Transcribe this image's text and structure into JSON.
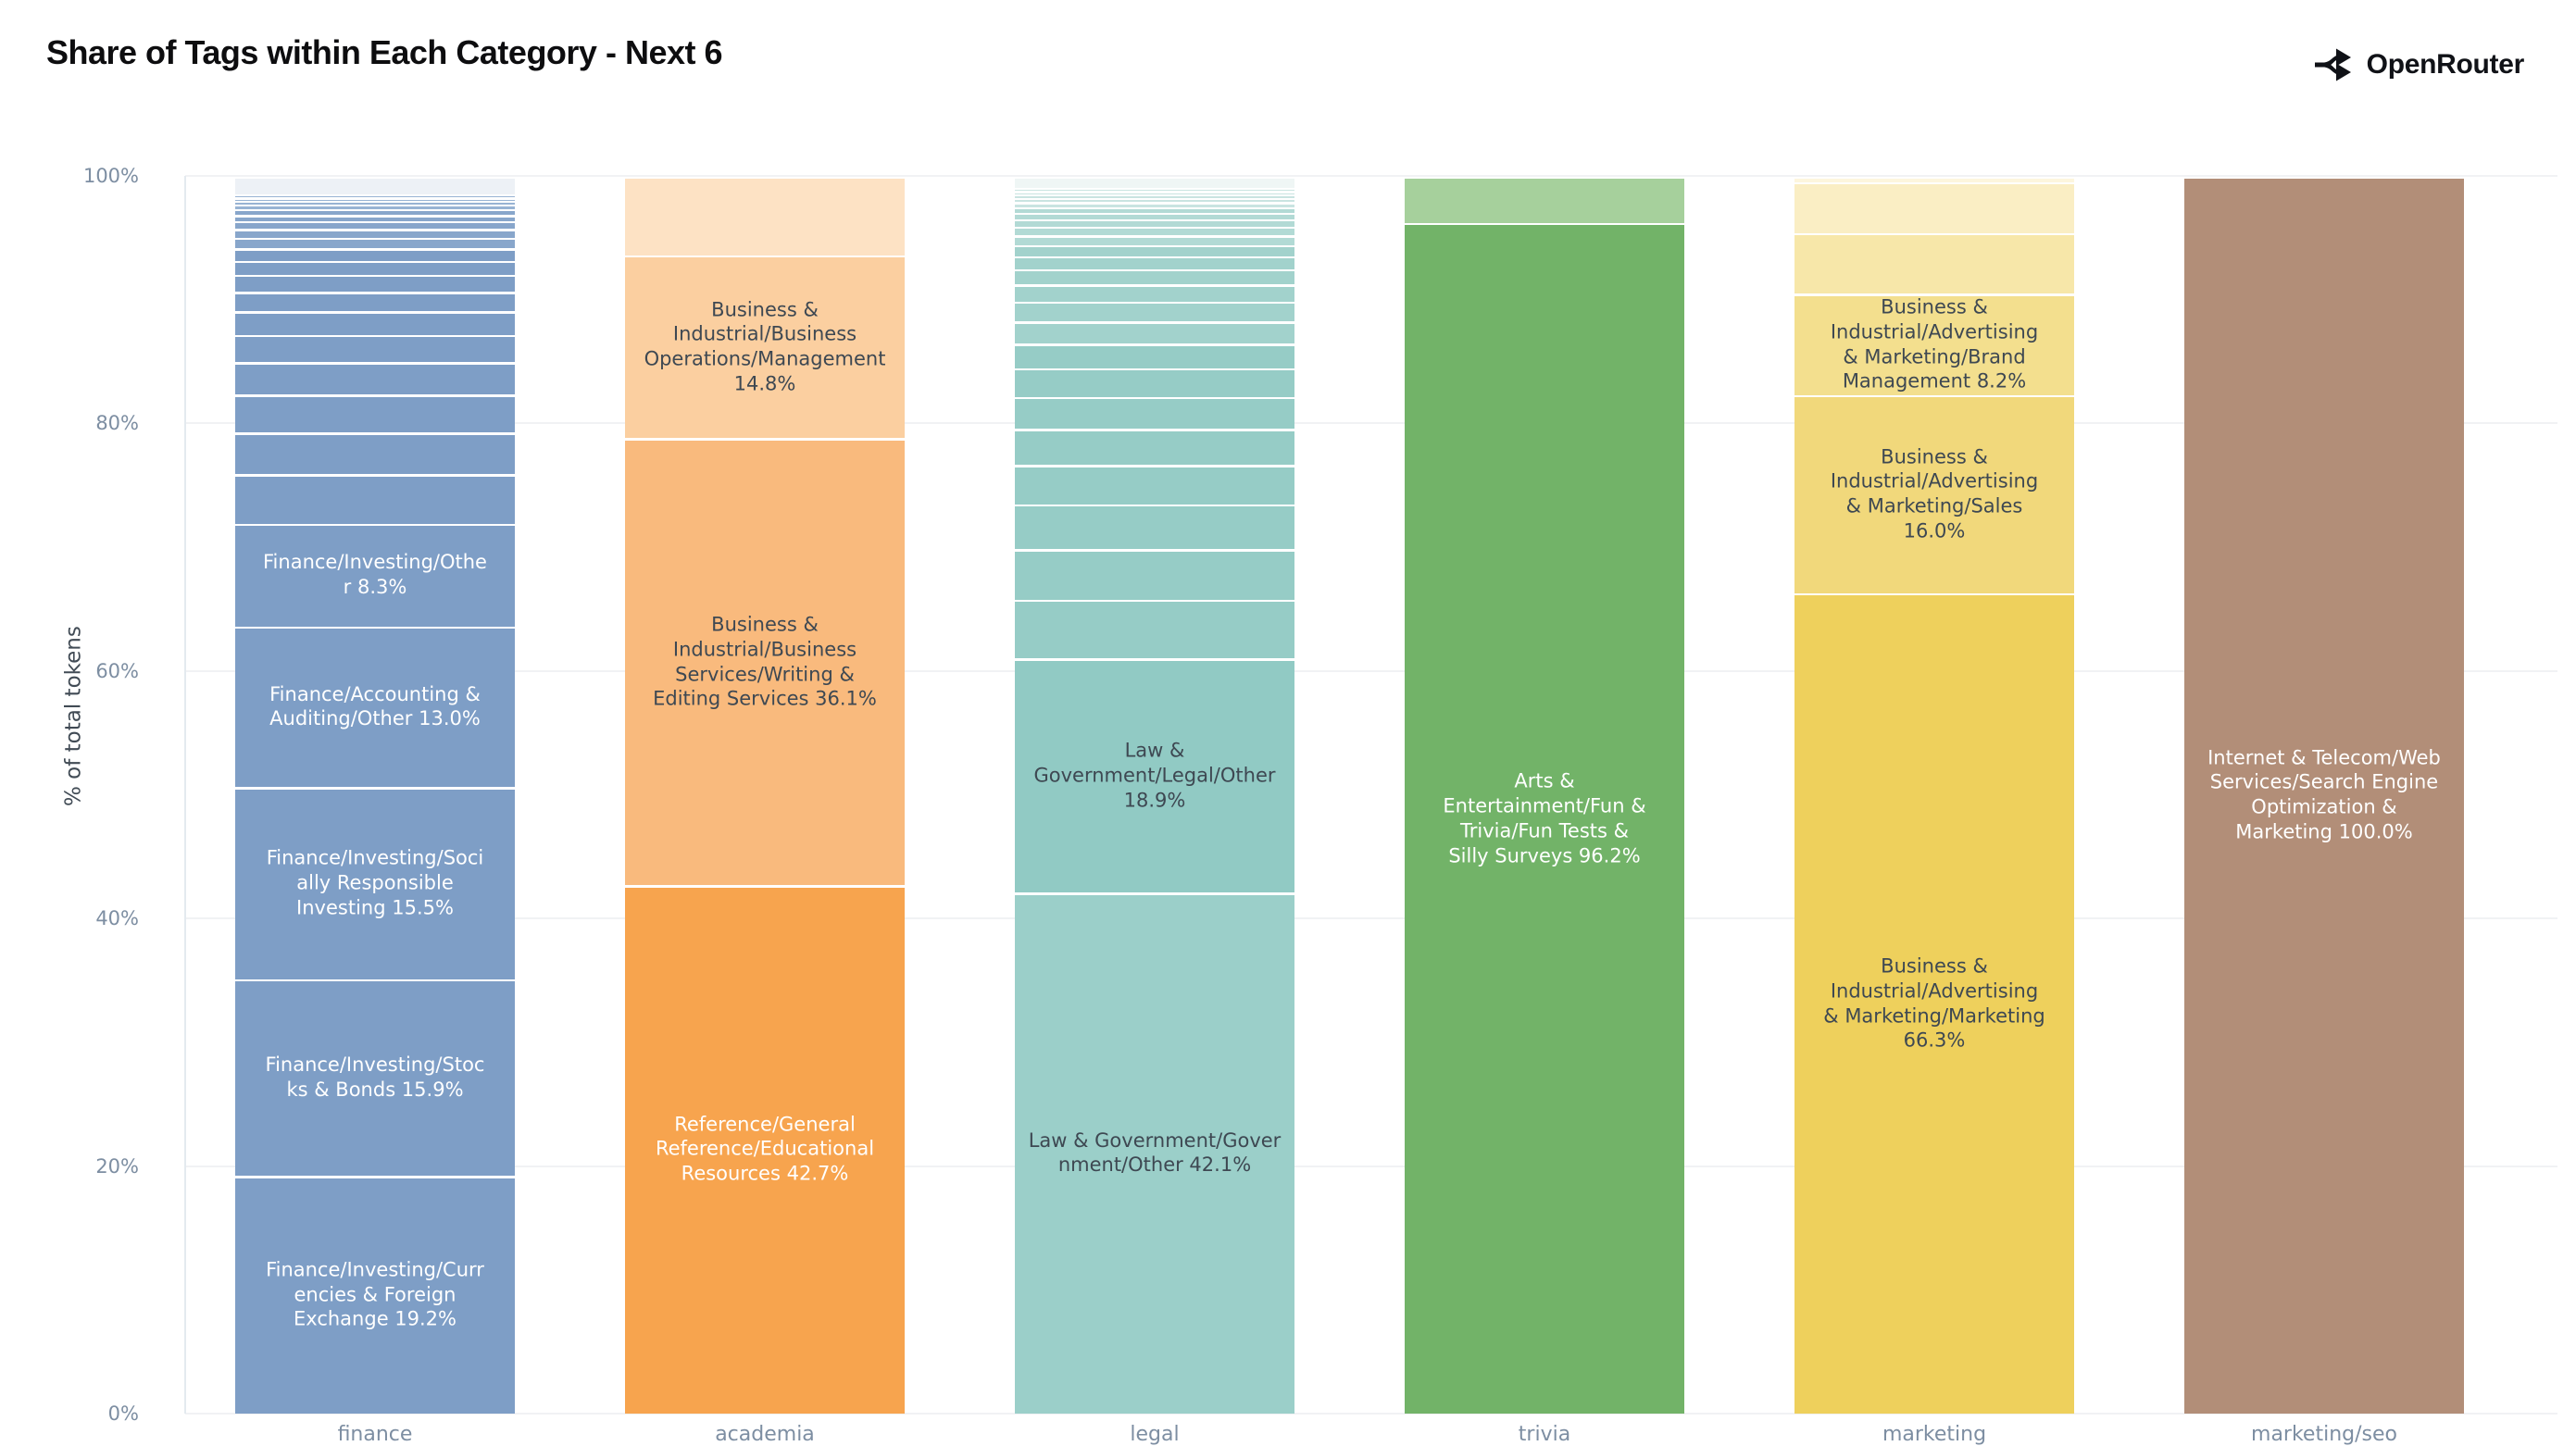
{
  "header": {
    "title": "Share of Tags within Each Category - Next 6",
    "brand": "OpenRouter"
  },
  "chart_data": {
    "type": "bar",
    "stacked": true,
    "title": "Share of Tags within Each Category - Next 6",
    "xlabel": "",
    "ylabel": "% of total tokens",
    "ylim": [
      0,
      100
    ],
    "yticks": [
      0,
      20,
      40,
      60,
      80,
      100
    ],
    "ytick_labels": [
      "0%",
      "20%",
      "40%",
      "60%",
      "80%",
      "100%"
    ],
    "grid": true,
    "legend": "none",
    "categories": [
      "finance",
      "academia",
      "legal",
      "trivia",
      "marketing",
      "marketing/seo"
    ],
    "bars": [
      {
        "category": "finance",
        "segments": [
          {
            "label": "Finance/Investing/Curr\nencies & Foreign\nExchange 19.2%",
            "tag": "Finance/Investing/Currencies & Foreign Exchange",
            "value": 19.2,
            "color": "#7e9ec6",
            "text": "#ffffff"
          },
          {
            "label": "Finance/Investing/Stoc\nks & Bonds 15.9%",
            "tag": "Finance/Investing/Stocks & Bonds",
            "value": 15.9,
            "color": "#7e9ec6",
            "text": "#ffffff"
          },
          {
            "label": "Finance/Investing/Soci\nally Responsible\nInvesting 15.5%",
            "tag": "Finance/Investing/Socially Responsible Investing",
            "value": 15.5,
            "color": "#7e9ec6",
            "text": "#ffffff"
          },
          {
            "label": "Finance/Accounting &\nAuditing/Other 13.0%",
            "tag": "Finance/Accounting & Auditing/Other",
            "value": 13.0,
            "color": "#7e9ec6",
            "text": "#ffffff"
          },
          {
            "label": "Finance/Investing/Othe\nr 8.3%",
            "tag": "Finance/Investing/Other",
            "value": 8.3,
            "color": "#7e9ec6",
            "text": "#ffffff"
          },
          {
            "value": 4.0,
            "color": "#7e9ec6"
          },
          {
            "value": 3.35,
            "color": "#7e9ec6"
          },
          {
            "value": 3.1,
            "color": "#7e9ec6"
          },
          {
            "value": 2.6,
            "color": "#7e9ec6"
          },
          {
            "value": 2.2,
            "color": "#7e9ec6"
          },
          {
            "value": 1.9,
            "color": "#7e9ec6"
          },
          {
            "value": 1.6,
            "color": "#7e9ec6"
          },
          {
            "value": 1.35,
            "color": "#7e9ec6"
          },
          {
            "value": 1.15,
            "color": "#7e9ec6"
          },
          {
            "value": 1.0,
            "color": "#7e9ec6"
          },
          {
            "value": 0.85,
            "color": "#88a6cb"
          },
          {
            "value": 0.72,
            "color": "#88a6cb"
          },
          {
            "value": 0.62,
            "color": "#88a6cb"
          },
          {
            "value": 0.52,
            "color": "#88a6cb"
          },
          {
            "value": 0.45,
            "color": "#88a6cb"
          },
          {
            "value": 0.38,
            "color": "#98b3d3"
          },
          {
            "value": 0.32,
            "color": "#98b3d3"
          },
          {
            "value": 0.27,
            "color": "#98b3d3"
          },
          {
            "value": 0.22,
            "color": "#98b3d3"
          },
          {
            "value": 1.5,
            "color": "#edf1f6"
          }
        ]
      },
      {
        "category": "academia",
        "segments": [
          {
            "label": "Reference/General\nReference/Educational\nResources 42.7%",
            "tag": "Reference/General Reference/Educational Resources",
            "value": 42.7,
            "color": "#f7a44e",
            "text": "#ffffff"
          },
          {
            "label": "Business &\nIndustrial/Business\nServices/Writing &\nEditing Services 36.1%",
            "tag": "Business & Industrial/Business Services/Writing & Editing Services",
            "value": 36.1,
            "color": "#f9ba7d",
            "text": "#3e4852"
          },
          {
            "label": "Business &\nIndustrial/Business\nOperations/Management\n14.8%",
            "tag": "Business & Industrial/Business Operations/Management",
            "value": 14.8,
            "color": "#fbcfa0",
            "text": "#3e4852"
          },
          {
            "value": 6.4,
            "color": "#fde2c4"
          }
        ]
      },
      {
        "category": "legal",
        "segments": [
          {
            "label": "Law & Government/Gover\nnment/Other 42.1%",
            "tag": "Law & Government/Government/Other",
            "value": 42.1,
            "color": "#9bcfc9",
            "text": "#3e4852"
          },
          {
            "label": "Law &\nGovernment/Legal/Other\n18.9%",
            "tag": "Law & Government/Legal/Other",
            "value": 18.9,
            "color": "#91cac4",
            "text": "#3e4852"
          },
          {
            "value": 4.75,
            "color": "#96ccc6"
          },
          {
            "value": 4.1,
            "color": "#96ccc6"
          },
          {
            "value": 3.6,
            "color": "#96ccc6"
          },
          {
            "value": 3.2,
            "color": "#96ccc6"
          },
          {
            "value": 2.9,
            "color": "#96ccc6"
          },
          {
            "value": 2.6,
            "color": "#96ccc6"
          },
          {
            "value": 2.3,
            "color": "#96ccc6"
          },
          {
            "value": 2.0,
            "color": "#96ccc6"
          },
          {
            "value": 1.8,
            "color": "#a2d2cc"
          },
          {
            "value": 1.6,
            "color": "#a2d2cc"
          },
          {
            "value": 1.4,
            "color": "#a2d2cc"
          },
          {
            "value": 1.2,
            "color": "#a2d2cc"
          },
          {
            "value": 1.05,
            "color": "#a2d2cc"
          },
          {
            "value": 0.9,
            "color": "#a2d2cc"
          },
          {
            "value": 0.8,
            "color": "#b2dad5"
          },
          {
            "value": 0.7,
            "color": "#b2dad5"
          },
          {
            "value": 0.6,
            "color": "#b2dad5"
          },
          {
            "value": 0.52,
            "color": "#b2dad5"
          },
          {
            "value": 0.45,
            "color": "#b2dad5"
          },
          {
            "value": 0.4,
            "color": "#c9e4e1"
          },
          {
            "value": 0.35,
            "color": "#c9e4e1"
          },
          {
            "value": 0.3,
            "color": "#c9e4e1"
          },
          {
            "value": 0.26,
            "color": "#c9e4e1"
          },
          {
            "value": 0.22,
            "color": "#c9e4e1"
          },
          {
            "value": 1.0,
            "color": "#eff6f5"
          }
        ]
      },
      {
        "category": "trivia",
        "segments": [
          {
            "label": "Arts &\nEntertainment/Fun &\nTrivia/Fun Tests &\nSilly Surveys 96.2%",
            "tag": "Arts & Entertainment/Fun & Trivia/Fun Tests & Silly Surveys",
            "value": 96.2,
            "color": "#72b368",
            "text": "#ffffff"
          },
          {
            "value": 3.8,
            "color": "#a6d09c"
          }
        ]
      },
      {
        "category": "marketing",
        "segments": [
          {
            "label": "Business &\nIndustrial/Advertising\n& Marketing/Marketing\n66.3%",
            "tag": "Business & Industrial/Advertising & Marketing/Marketing",
            "value": 66.3,
            "color": "#eed05c",
            "text": "#3e4852"
          },
          {
            "label": "Business &\nIndustrial/Advertising\n& Marketing/Sales\n16.0%",
            "tag": "Business & Industrial/Advertising & Marketing/Sales",
            "value": 16.0,
            "color": "#f1d87b",
            "text": "#3e4852"
          },
          {
            "label": "Business &\nIndustrial/Advertising\n& Marketing/Brand\nManagement 8.2%",
            "tag": "Business & Industrial/Advertising & Marketing/Brand Management",
            "value": 8.2,
            "color": "#f3df8e",
            "text": "#3e4852"
          },
          {
            "value": 4.9,
            "color": "#f7e7a9"
          },
          {
            "value": 4.1,
            "color": "#faeec4"
          },
          {
            "value": 0.5,
            "color": "#fdf6dd"
          }
        ]
      },
      {
        "category": "marketing/seo",
        "segments": [
          {
            "label": "Internet & Telecom/Web\nServices/Search Engine\nOptimization &\nMarketing 100.0%",
            "tag": "Internet & Telecom/Web Services/Search Engine Optimization & Marketing",
            "value": 100.0,
            "color": "#b28e78",
            "text": "#ffffff"
          }
        ]
      }
    ]
  }
}
